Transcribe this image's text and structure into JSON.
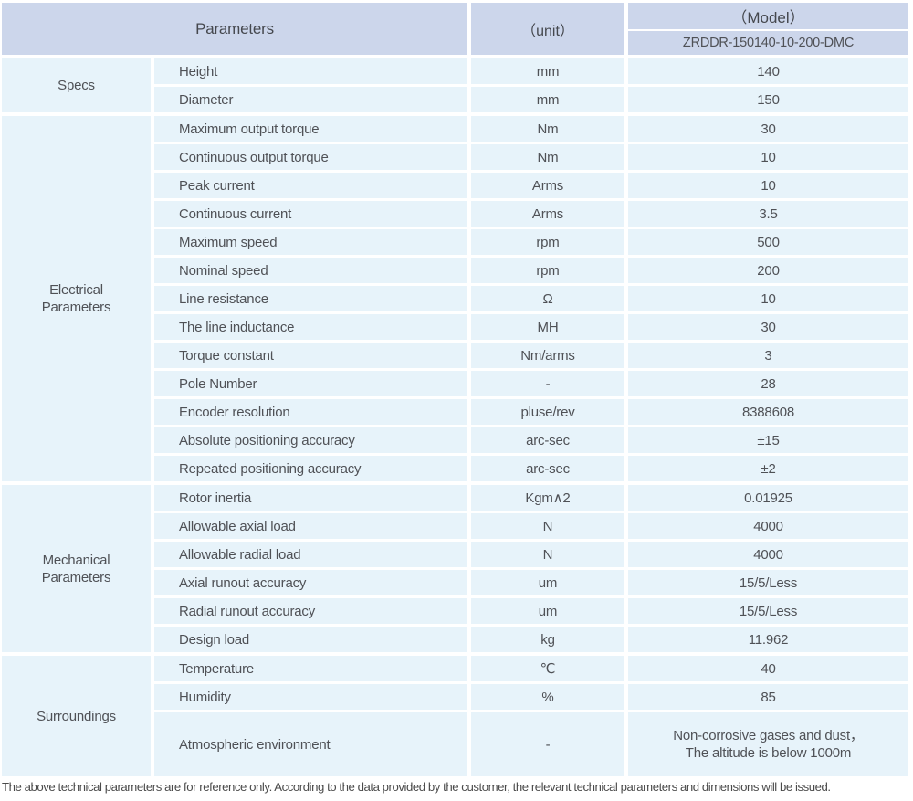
{
  "colors": {
    "header_bg": "#ccd6eb",
    "row_bg": "#e7f3fa",
    "text": "#4f5156"
  },
  "header": {
    "parameters_label": "Parameters",
    "unit_label": "（unit）",
    "model_label": "（Model）",
    "model_value": "ZRDDR-150140-10-200-DMC"
  },
  "sections": [
    {
      "label": "Specs",
      "rows": [
        {
          "name": "Height",
          "unit": "mm",
          "value": "140"
        },
        {
          "name": "Diameter",
          "unit": "mm",
          "value": "150"
        }
      ]
    },
    {
      "label": "Electrical\nParameters",
      "rows": [
        {
          "name": "Maximum output torque",
          "unit": "Nm",
          "value": "30"
        },
        {
          "name": "Continuous output torque",
          "unit": "Nm",
          "value": "10"
        },
        {
          "name": "Peak current",
          "unit": "Arms",
          "value": "10"
        },
        {
          "name": "Continuous current",
          "unit": "Arms",
          "value": "3.5"
        },
        {
          "name": "Maximum speed",
          "unit": "rpm",
          "value": "500"
        },
        {
          "name": "Nominal speed",
          "unit": "rpm",
          "value": "200"
        },
        {
          "name": "Line resistance",
          "unit": "Ω",
          "value": "10"
        },
        {
          "name": "The line inductance",
          "unit": "MH",
          "value": "30"
        },
        {
          "name": "Torque constant",
          "unit": "Nm/arms",
          "value": "3"
        },
        {
          "name": "Pole Number",
          "unit": "-",
          "value": "28"
        },
        {
          "name": "Encoder resolution",
          "unit": "pluse/rev",
          "value": "8388608"
        },
        {
          "name": "Absolute positioning accuracy",
          "unit": "arc-sec",
          "value": "±15"
        },
        {
          "name": "Repeated positioning accuracy",
          "unit": "arc-sec",
          "value": "±2"
        }
      ]
    },
    {
      "label": "Mechanical\nParameters",
      "rows": [
        {
          "name": "Rotor inertia",
          "unit": "Kgm∧2",
          "value": "0.01925"
        },
        {
          "name": "Allowable axial load",
          "unit": "N",
          "value": "4000"
        },
        {
          "name": "Allowable radial load",
          "unit": "N",
          "value": "4000"
        },
        {
          "name": "Axial runout accuracy",
          "unit": "um",
          "value": "15/5/Less"
        },
        {
          "name": "Radial runout accuracy",
          "unit": "um",
          "value": "15/5/Less"
        },
        {
          "name": "Design load",
          "unit": "kg",
          "value": "11.962"
        }
      ]
    },
    {
      "label": "Surroundings",
      "rows": [
        {
          "name": "Temperature",
          "unit": "℃",
          "value": "40"
        },
        {
          "name": "Humidity",
          "unit": "%",
          "value": "85"
        },
        {
          "name": "Atmospheric environment",
          "unit": "-",
          "value": "Non-corrosive gases and dust，\nThe altitude is below 1000m"
        }
      ]
    }
  ],
  "footer": {
    "note": "The above technical parameters are for reference only. According to the data provided by the customer, the relevant technical parameters and dimensions will be issued."
  }
}
